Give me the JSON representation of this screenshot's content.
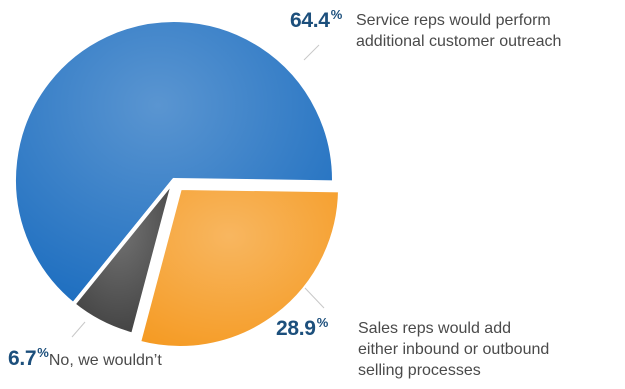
{
  "chart_data": {
    "type": "pie",
    "slices": [
      {
        "label_lines": [
          "Service reps would perform",
          "additional customer outreach"
        ],
        "value": 64.4,
        "value_text": "64.4",
        "color": "#1a6cbf"
      },
      {
        "label_lines": [
          "Sales reps would add",
          "either inbound or outbound",
          "selling processes"
        ],
        "value": 28.9,
        "value_text": "28.9",
        "color": "#f59a22"
      },
      {
        "label_lines": [
          "No, we wouldn’t"
        ],
        "value": 6.7,
        "value_text": "6.7",
        "color": "#3d3d3d"
      }
    ],
    "percent_symbol": "%"
  }
}
